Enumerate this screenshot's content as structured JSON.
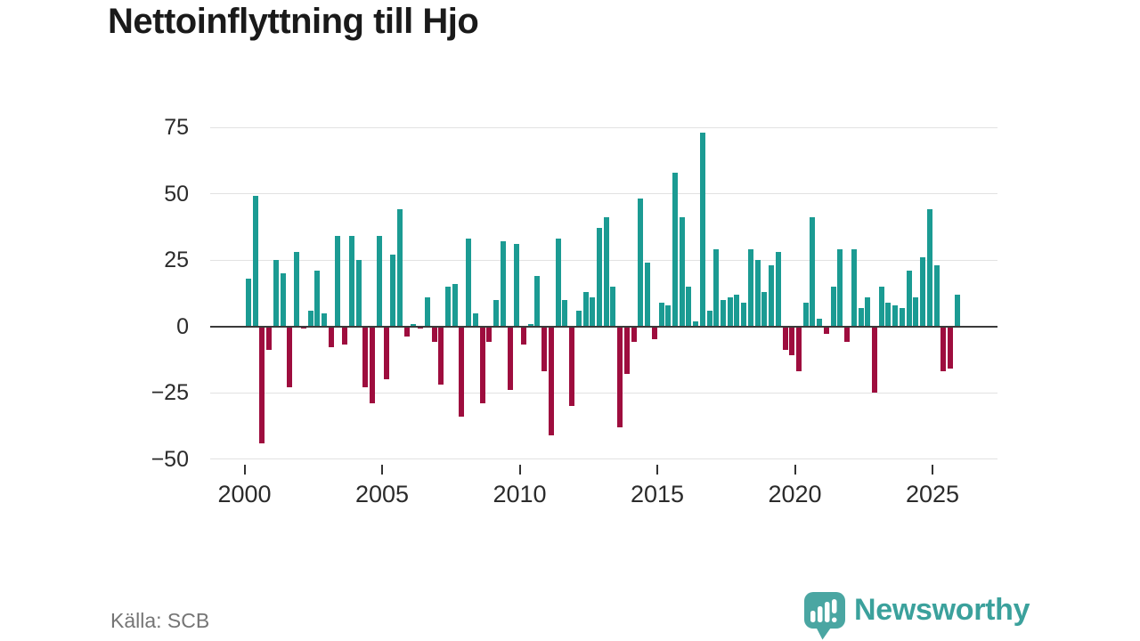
{
  "title": "Nettoinflyttning till Hjo",
  "source": "Källa: SCB",
  "brand": {
    "name": "Newsworthy",
    "icon": "newsworthy-chart-bubble-icon",
    "text_color": "#3ba19c",
    "icon_color": "#4aa6a2"
  },
  "colors": {
    "positive": "#1b9b93",
    "negative": "#9e0d3e",
    "grid": "#e2e2e2",
    "axis": "#3a3a3a",
    "tick_text": "#2b2b2b",
    "title_text": "#1a1a1a",
    "source_text": "#757575"
  },
  "chart_data": {
    "type": "bar",
    "title": "Nettoinflyttning till Hjo",
    "xlabel": "",
    "ylabel": "",
    "frequency": "quarterly",
    "x_start": "2000 Q1",
    "x_end": "2025 Q4",
    "ylim": [
      -50,
      75
    ],
    "grid": "horizontal",
    "legend": "none",
    "positive_color": "#1b9b93",
    "negative_color": "#9e0d3e",
    "y_ticks": [
      75,
      50,
      25,
      0,
      -25,
      -50
    ],
    "y_tick_labels": [
      "75",
      "50",
      "25",
      "0",
      "−25",
      "−50"
    ],
    "x_tick_years": [
      2000,
      2005,
      2010,
      2015,
      2020,
      2025
    ],
    "x_tick_labels": [
      "2000",
      "2005",
      "2010",
      "2015",
      "2020",
      "2025"
    ],
    "values": [
      18,
      49,
      -44,
      -9,
      25,
      20,
      -23,
      28,
      -1,
      6,
      21,
      5,
      -8,
      34,
      -7,
      34,
      25,
      -23,
      -29,
      34,
      -20,
      27,
      44,
      -4,
      1,
      -1,
      11,
      -6,
      -22,
      15,
      16,
      -34,
      33,
      5,
      -29,
      -6,
      10,
      32,
      -24,
      31,
      -7,
      1,
      19,
      -17,
      -41,
      33,
      10,
      -30,
      6,
      13,
      11,
      37,
      41,
      15,
      -38,
      -18,
      -6,
      48,
      24,
      -5,
      9,
      8,
      58,
      41,
      15,
      2,
      73,
      6,
      29,
      10,
      11,
      12,
      9,
      29,
      25,
      13,
      23,
      28,
      -9,
      -11,
      -17,
      9,
      41,
      3,
      -3,
      15,
      29,
      -6,
      29,
      7,
      11,
      -25,
      15,
      9,
      8,
      7,
      21,
      11,
      26,
      44,
      23,
      -17,
      -16,
      12
    ]
  }
}
